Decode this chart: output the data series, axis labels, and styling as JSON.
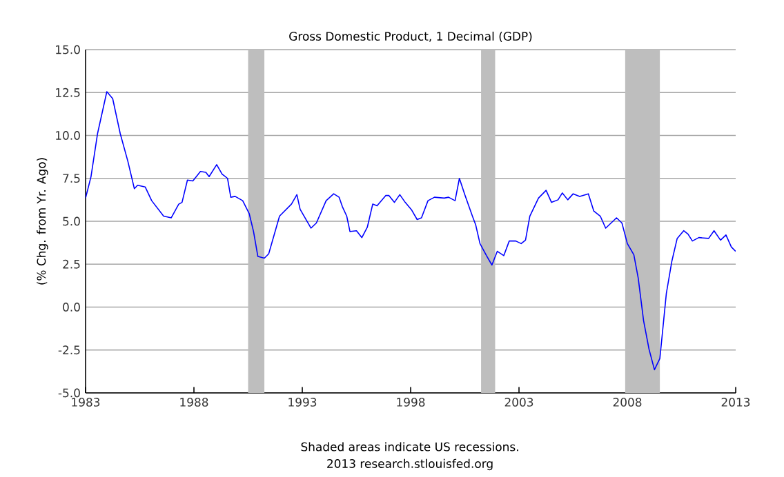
{
  "chart_data": {
    "type": "line",
    "title": "Gross Domestic Product, 1 Decimal (GDP)",
    "ylabel": "(% Chg. from Yr. Ago)",
    "annotations": [
      "Shaded areas indicate US recessions.",
      "2013 research.stlouisfed.org"
    ],
    "x": [
      1983.0,
      1983.25,
      1983.55,
      1983.98,
      1984.25,
      1984.6,
      1984.95,
      1985.25,
      1985.4,
      1985.75,
      1986.05,
      1986.6,
      1986.95,
      1987.3,
      1987.45,
      1987.7,
      1987.95,
      1988.3,
      1988.55,
      1988.7,
      1989.05,
      1989.3,
      1989.55,
      1989.7,
      1989.9,
      1990.25,
      1990.55,
      1990.75,
      1990.95,
      1991.25,
      1991.45,
      1991.95,
      1992.5,
      1992.75,
      1992.9,
      1993.4,
      1993.65,
      1994.1,
      1994.45,
      1994.7,
      1994.85,
      1995.05,
      1995.2,
      1995.5,
      1995.75,
      1996.0,
      1996.25,
      1996.45,
      1996.85,
      1997.0,
      1997.25,
      1997.5,
      1997.75,
      1998.05,
      1998.3,
      1998.5,
      1998.8,
      1999.1,
      1999.55,
      1999.75,
      2000.05,
      2000.25,
      2000.5,
      2000.85,
      2001.0,
      2001.2,
      2001.5,
      2001.75,
      2002.0,
      2002.3,
      2002.55,
      2002.85,
      2003.1,
      2003.3,
      2003.5,
      2003.9,
      2004.25,
      2004.5,
      2004.8,
      2005.0,
      2005.25,
      2005.5,
      2005.8,
      2006.2,
      2006.45,
      2006.75,
      2007.0,
      2007.5,
      2007.75,
      2008.0,
      2008.3,
      2008.5,
      2008.75,
      2009.0,
      2009.25,
      2009.5,
      2009.8,
      2010.05,
      2010.3,
      2010.6,
      2010.8,
      2011.0,
      2011.3,
      2011.75,
      2012.0,
      2012.3,
      2012.55,
      2012.8,
      2013.0
    ],
    "series": [
      {
        "color": "#0000ff",
        "values": [
          6.35,
          7.6,
          10.1,
          12.55,
          12.15,
          10.1,
          8.5,
          6.9,
          7.1,
          7.0,
          6.2,
          5.3,
          5.2,
          6.0,
          6.1,
          7.4,
          7.35,
          7.9,
          7.85,
          7.6,
          8.3,
          7.75,
          7.5,
          6.4,
          6.45,
          6.2,
          5.45,
          4.4,
          2.95,
          2.85,
          3.1,
          5.3,
          6.0,
          6.55,
          5.7,
          4.6,
          4.9,
          6.2,
          6.6,
          6.4,
          5.85,
          5.3,
          4.4,
          4.45,
          4.05,
          4.65,
          6.0,
          5.9,
          6.5,
          6.5,
          6.1,
          6.55,
          6.1,
          5.65,
          5.1,
          5.2,
          6.2,
          6.4,
          6.35,
          6.4,
          6.2,
          7.5,
          6.55,
          5.3,
          4.8,
          3.7,
          3.0,
          2.45,
          3.25,
          3.0,
          3.85,
          3.85,
          3.7,
          3.9,
          5.3,
          6.35,
          6.8,
          6.1,
          6.25,
          6.65,
          6.25,
          6.6,
          6.45,
          6.6,
          5.6,
          5.3,
          4.6,
          5.2,
          4.9,
          3.7,
          3.05,
          1.7,
          -0.8,
          -2.45,
          -3.65,
          -3.0,
          0.8,
          2.65,
          4.0,
          4.45,
          4.25,
          3.85,
          4.05,
          4.0,
          4.45,
          3.9,
          4.2,
          3.5,
          3.25
        ]
      }
    ],
    "xlim": [
      1983,
      2013
    ],
    "xticks": [
      1983,
      1988,
      1993,
      1998,
      2003,
      2008,
      2013
    ],
    "ylim": [
      -5,
      15
    ],
    "yticks": [
      {
        "value": -5,
        "label": "-5.0"
      },
      {
        "value": -2.5,
        "label": "-2.5"
      },
      {
        "value": 0,
        "label": "0.0"
      },
      {
        "value": 2.5,
        "label": "2.5"
      },
      {
        "value": 5,
        "label": "5.0"
      },
      {
        "value": 7.5,
        "label": "7.5"
      },
      {
        "value": 10,
        "label": "10.0"
      },
      {
        "value": 12.5,
        "label": "12.5"
      },
      {
        "value": 15,
        "label": "15.0"
      }
    ],
    "grid": "y",
    "bands": [
      {
        "axis": "x",
        "from": 1990.5,
        "to": 1991.25,
        "color": "#bebebe"
      },
      {
        "axis": "x",
        "from": 2001.25,
        "to": 2001.9,
        "color": "#bebebe"
      },
      {
        "axis": "x",
        "from": 2007.9,
        "to": 2009.5,
        "color": "#bebebe"
      }
    ]
  }
}
